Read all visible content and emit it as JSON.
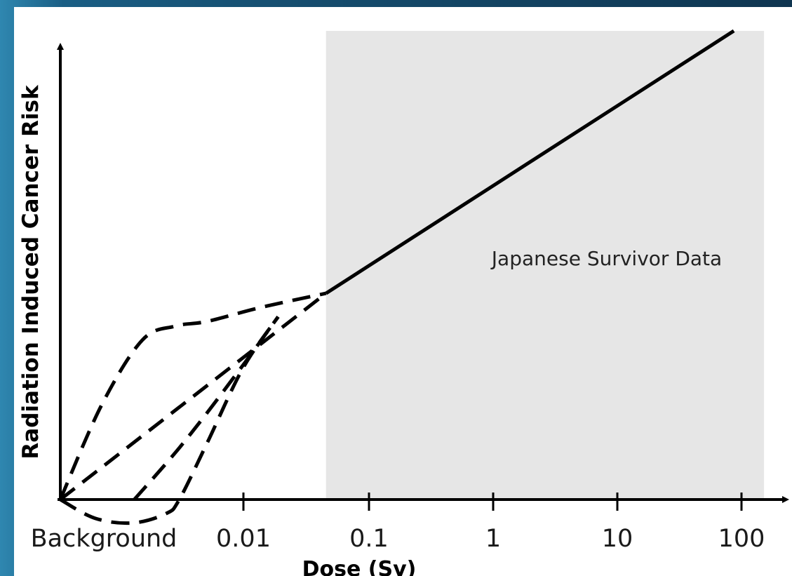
{
  "chart_data": {
    "type": "line",
    "title": "",
    "xlabel": "Dose (Sv)",
    "ylabel": "Radiation Induced Cancer Risk",
    "x_scale": "log",
    "x_ticks": [
      "Background",
      "0.01",
      "0.1",
      "1",
      "10",
      "100"
    ],
    "xlim": [
      0.001,
      100
    ],
    "ylim": [
      0,
      1
    ],
    "grid": false,
    "shaded_region": {
      "x_from": 0.09,
      "x_to": 150,
      "color": "#e6e6e6",
      "label": "Japanese Survivor Data"
    },
    "series": [
      {
        "style": "solid",
        "points": [
          [
            0.09,
            0.44
          ],
          [
            90,
            1.0
          ]
        ]
      },
      {
        "style": "dashed",
        "points": [
          [
            0.001,
            0.0
          ],
          [
            0.09,
            0.44
          ]
        ]
      },
      {
        "style": "dashed",
        "points": [
          [
            0.001,
            0.0
          ],
          [
            0.002,
            0.2
          ],
          [
            0.004,
            0.34
          ],
          [
            0.007,
            0.37
          ],
          [
            0.012,
            0.38
          ],
          [
            0.03,
            0.41
          ],
          [
            0.09,
            0.44
          ]
        ]
      },
      {
        "style": "dashed",
        "points": [
          [
            0.0035,
            0.0
          ],
          [
            0.008,
            0.12
          ],
          [
            0.02,
            0.27
          ],
          [
            0.04,
            0.39
          ]
        ]
      },
      {
        "style": "dashed",
        "points": [
          [
            0.001,
            0.0
          ],
          [
            0.0018,
            -0.04
          ],
          [
            0.0034,
            -0.05
          ],
          [
            0.006,
            -0.03
          ],
          [
            0.0075,
            0.0
          ],
          [
            0.012,
            0.12
          ],
          [
            0.022,
            0.28
          ],
          [
            0.04,
            0.39
          ]
        ]
      }
    ]
  }
}
